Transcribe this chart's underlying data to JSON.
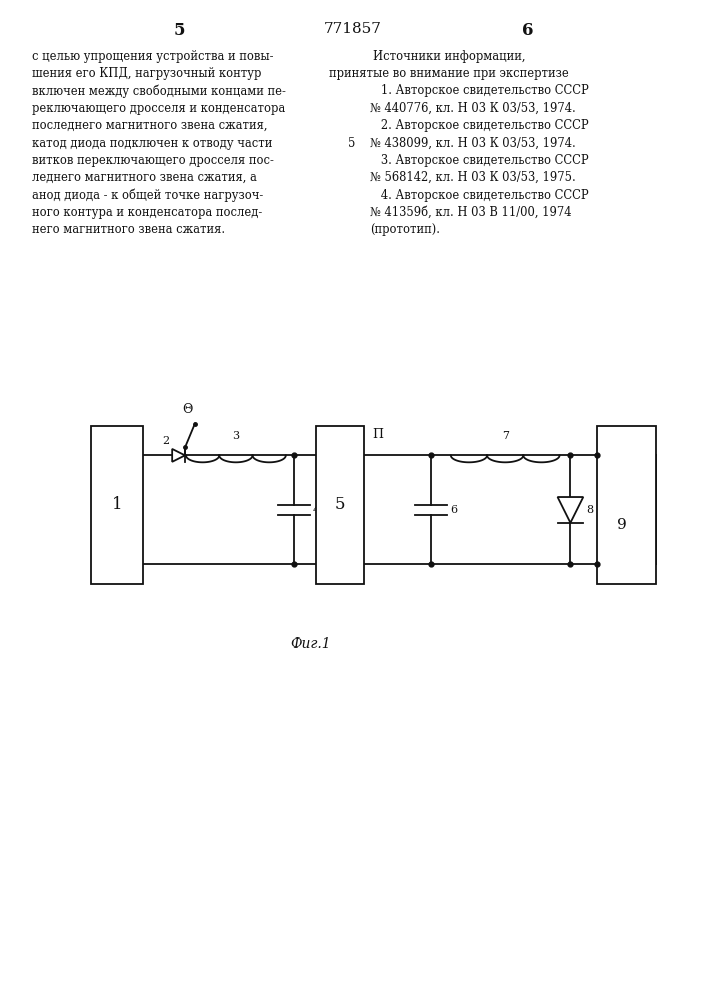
{
  "page_num_left": "5",
  "page_num_center": "771857",
  "page_num_right": "6",
  "left_col": [
    "с целью упрощения устройства и повы-",
    "шения его КПД, нагрузочный контур",
    "включен между свободными концами пе-",
    "реключающего дросселя и конденсатора",
    "последнего магнитного звена сжатия,",
    "катод диода подключен к отводу части",
    "витков переключающего дросселя пос-",
    "леднего магнитного звена сжатия, а",
    "анод диода - к общей точке нагрузоч-",
    "ного контура и конденсатора послед-",
    "него магнитного звена сжатия."
  ],
  "right_col_title": "Источники информации,",
  "right_col_sub": "принятые во внимание при экспертизе",
  "right_col_refs": [
    "   1. Авторское свидетельство СССР",
    "№ 440776, кл. Н 03 К 03/53, 1974.",
    "   2. Авторское свидетельство СССР",
    "№ 438099, кл. Н 03 К 03/53, 1974.",
    "   3. Авторское свидетельство СССР",
    "№ 568142, кл. Н 03 К 03/53, 1975.",
    "   4. Авторское свидетельство СССР",
    "№ 41359б, кл. Н 03 В 11/00, 1974",
    "(прототип)."
  ],
  "margin_5": "5",
  "fig_caption": "Фиг.1",
  "bg": "#ffffff",
  "fg": "#111111"
}
